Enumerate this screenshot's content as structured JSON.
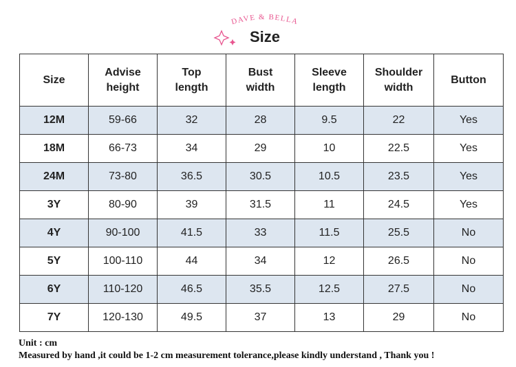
{
  "logo": "DAVE & BELLA",
  "title": "Size",
  "table": {
    "header": [
      "Size",
      "Advise\nheight",
      "Top\nlength",
      "Bust\nwidth",
      "Sleeve\nlength",
      "Shoulder\nwidth",
      "Button"
    ],
    "rows": [
      [
        "12M",
        "59-66",
        "32",
        "28",
        "9.5",
        "22",
        "Yes"
      ],
      [
        "18M",
        "66-73",
        "34",
        "29",
        "10",
        "22.5",
        "Yes"
      ],
      [
        "24M",
        "73-80",
        "36.5",
        "30.5",
        "10.5",
        "23.5",
        "Yes"
      ],
      [
        "3Y",
        "80-90",
        "39",
        "31.5",
        "11",
        "24.5",
        "Yes"
      ],
      [
        "4Y",
        "90-100",
        "41.5",
        "33",
        "11.5",
        "25.5",
        "No"
      ],
      [
        "5Y",
        "100-110",
        "44",
        "34",
        "12",
        "26.5",
        "No"
      ],
      [
        "6Y",
        "110-120",
        "46.5",
        "35.5",
        "12.5",
        "27.5",
        "No"
      ],
      [
        "7Y",
        "120-130",
        "49.5",
        "37",
        "13",
        "29",
        "No"
      ]
    ]
  },
  "footer": {
    "unit": "Unit : cm",
    "note": "Measured by hand ,it could be 1-2 cm measurement tolerance,please kindly understand , Thank you !"
  }
}
